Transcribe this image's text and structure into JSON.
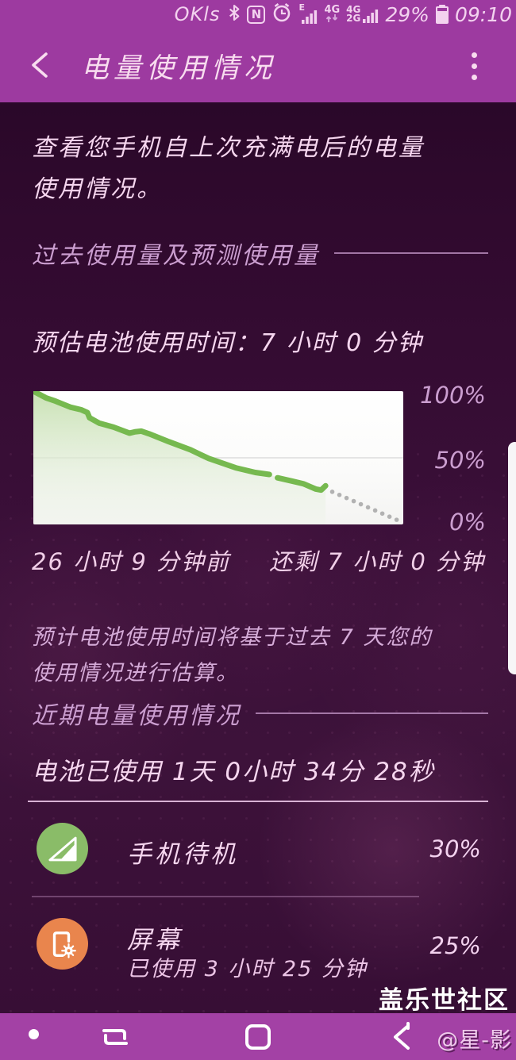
{
  "status_bar": {
    "carrier": "OKls",
    "nfc_letter": "N",
    "signal_type": "E",
    "net_badge": "4G",
    "dual_net_top": "4G",
    "dual_net_bottom": "2G",
    "battery_percent": "29%",
    "time": "09:10",
    "icons": [
      "bluetooth-icon",
      "nfc-icon",
      "alarm-icon",
      "signal-bars-icon",
      "updown-arrows-icon",
      "battery-icon"
    ]
  },
  "header": {
    "title": "电量使用情况",
    "icons": [
      "back-icon",
      "overflow-menu-icon"
    ]
  },
  "intro_text": "查看您手机自上次充满电后的电量使用情况。",
  "sections": {
    "past_usage": "过去使用量及预测使用量",
    "recent_usage": "近期电量使用情况"
  },
  "estimate_text": "预估电池使用时间：7 小时 0 分钟",
  "chart_caption": {
    "left": "26 小时 9 分钟前",
    "right": "还剩 7 小时 0 分钟"
  },
  "note_text": "预计电池使用时间将基于过去 7 天您的使用情况进行估算。",
  "battery_used_text": "电池已使用 1天 0小时 34分 28秒",
  "usage_items": [
    {
      "name": "手机待机",
      "percent": "30%",
      "icon": "standby-signal-icon",
      "icon_color": "#8abc68"
    },
    {
      "name": "屏幕",
      "detail": "已使用 3 小时 25 分钟",
      "percent": "25%",
      "icon": "screen-brightness-icon",
      "icon_color": "#e9854d"
    }
  ],
  "community_watermark": "盖乐世社区",
  "nav_watermark": "@星-影",
  "colors": {
    "header_bg": "#9d3aa0",
    "nav_bg": "#a341a5",
    "content_bg": "#3a0f38",
    "text_pink": "#f6d6ef",
    "muted_pink": "#cb9ed0",
    "chart_line_green": "#76b94f",
    "standby_green": "#8abc68",
    "screen_orange": "#e9854d"
  },
  "chart_data": {
    "type": "area",
    "title": "预估电池使用时间：7 小时 0 分钟",
    "ylabels": [
      "100%",
      "50%",
      "0%"
    ],
    "ylim": [
      0,
      100
    ],
    "x_total_hours": 33.15,
    "observed_hours": 26.15,
    "forecast_hours": 7.0,
    "grid_pct": 50,
    "line_color": "#76b94f",
    "fill_top": "rgba(198,224,176,0.95)",
    "fill_bottom": "rgba(238,243,234,0.35)",
    "grid_color": "#dcdcdc",
    "forecast_dot_color": "#b2b2b2",
    "history": [
      [
        0,
        100
      ],
      [
        3.4,
        95
      ],
      [
        6,
        92.5
      ],
      [
        10,
        88
      ],
      [
        13,
        86
      ],
      [
        14.6,
        84
      ],
      [
        15.2,
        80
      ],
      [
        17.8,
        76
      ],
      [
        21.7,
        73
      ],
      [
        26,
        68.5
      ],
      [
        27.5,
        69.5
      ],
      [
        29.2,
        70
      ],
      [
        31.3,
        68
      ],
      [
        36.7,
        62
      ],
      [
        42.5,
        56
      ],
      [
        47.4,
        49.5
      ],
      [
        54.7,
        42.5
      ],
      [
        60,
        39
      ],
      [
        63.8,
        37.5
      ],
      [
        66,
        35
      ],
      [
        70,
        32.5
      ],
      [
        73,
        30.5
      ],
      [
        76.4,
        26.5
      ],
      [
        77.8,
        25.8
      ],
      [
        79,
        29
      ]
    ],
    "gap_after_index": 18,
    "forecast": {
      "from": [
        80.8,
        24.5
      ],
      "to": [
        98.2,
        3.5
      ],
      "dots": 10
    }
  }
}
